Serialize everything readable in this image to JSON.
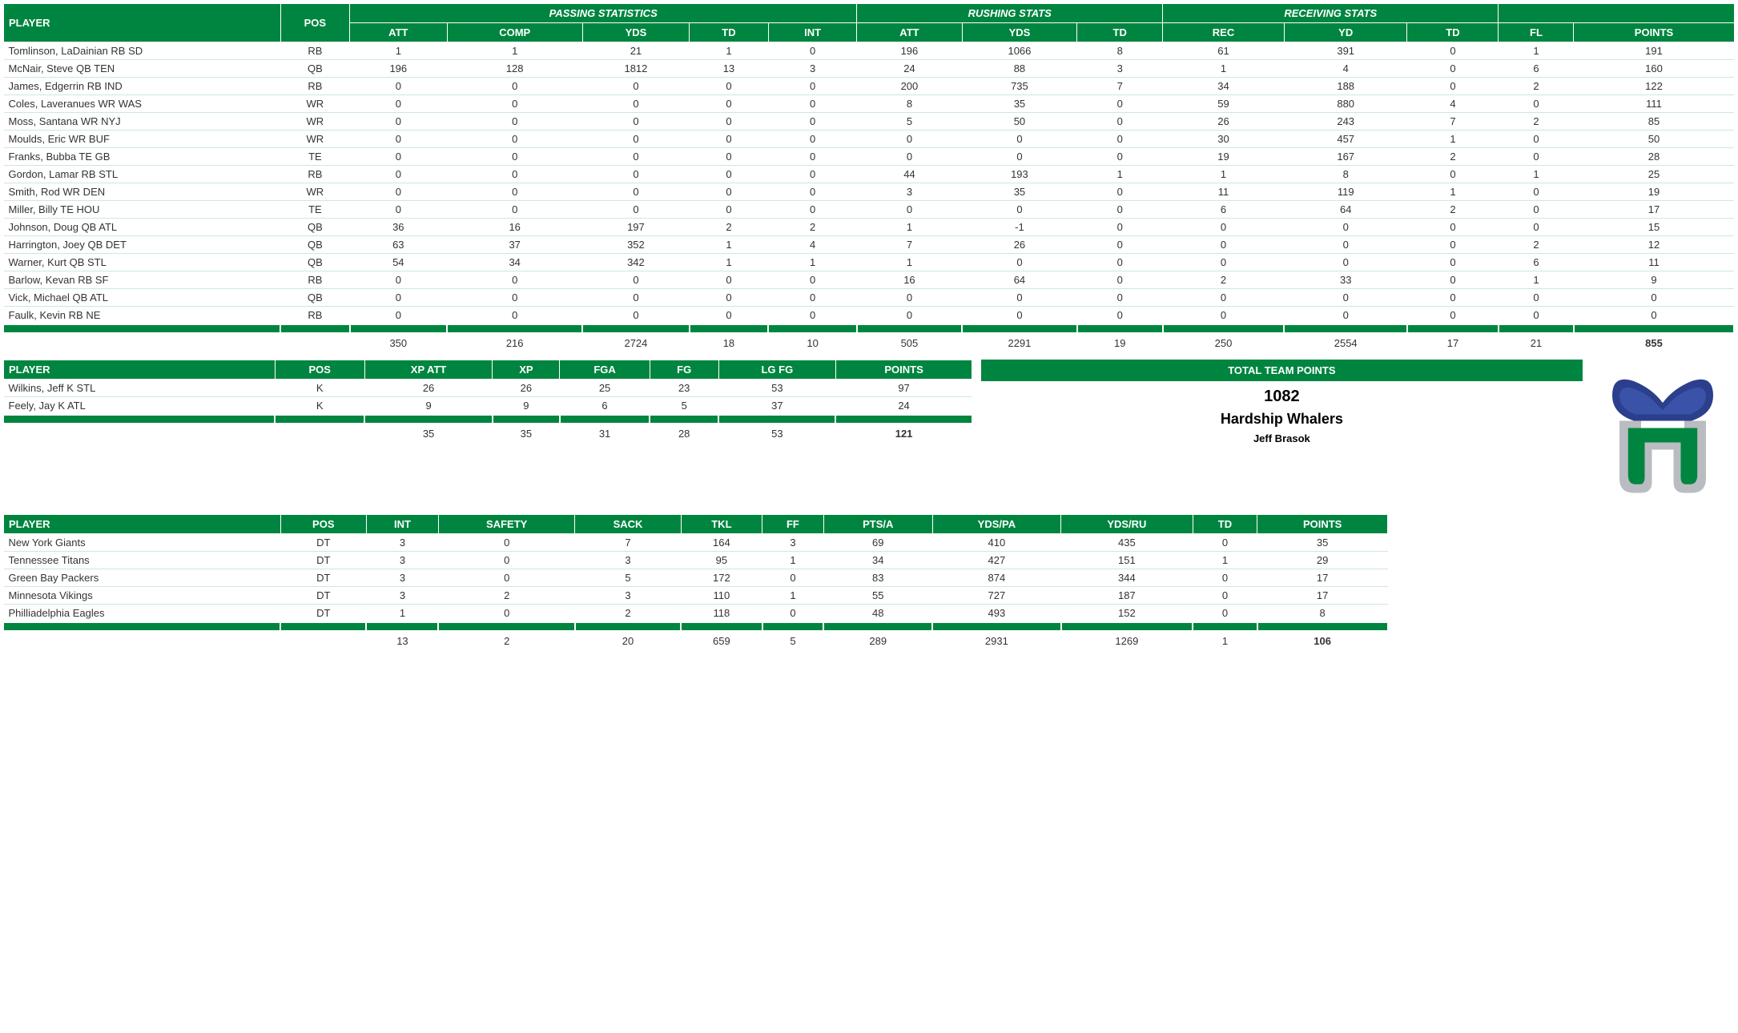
{
  "colors": {
    "header_bg": "#008540",
    "header_fg": "#ffffff",
    "row_border": "#cfe8d9",
    "text": "#333333",
    "logo_blue": "#2b3f8c",
    "logo_gray": "#b9bcc0",
    "logo_green": "#008540"
  },
  "offense": {
    "groups": [
      "PASSING STATISTICS",
      "RUSHING STATS",
      "RECEIVING STATS"
    ],
    "columns": [
      "PLAYER",
      "POS",
      "ATT",
      "COMP",
      "YDS",
      "TD",
      "INT",
      "ATT",
      "YDS",
      "TD",
      "REC",
      "YD",
      "TD",
      "FL",
      "POINTS"
    ],
    "rows": [
      [
        "Tomlinson, LaDainian RB SD",
        "RB",
        "1",
        "1",
        "21",
        "1",
        "0",
        "196",
        "1066",
        "8",
        "61",
        "391",
        "0",
        "1",
        "191"
      ],
      [
        "McNair, Steve QB TEN",
        "QB",
        "196",
        "128",
        "1812",
        "13",
        "3",
        "24",
        "88",
        "3",
        "1",
        "4",
        "0",
        "6",
        "160"
      ],
      [
        "James, Edgerrin RB IND",
        "RB",
        "0",
        "0",
        "0",
        "0",
        "0",
        "200",
        "735",
        "7",
        "34",
        "188",
        "0",
        "2",
        "122"
      ],
      [
        "Coles, Laveranues WR WAS",
        "WR",
        "0",
        "0",
        "0",
        "0",
        "0",
        "8",
        "35",
        "0",
        "59",
        "880",
        "4",
        "0",
        "111"
      ],
      [
        "Moss, Santana WR NYJ",
        "WR",
        "0",
        "0",
        "0",
        "0",
        "0",
        "5",
        "50",
        "0",
        "26",
        "243",
        "7",
        "2",
        "85"
      ],
      [
        "Moulds, Eric WR BUF",
        "WR",
        "0",
        "0",
        "0",
        "0",
        "0",
        "0",
        "0",
        "0",
        "30",
        "457",
        "1",
        "0",
        "50"
      ],
      [
        "Franks, Bubba TE GB",
        "TE",
        "0",
        "0",
        "0",
        "0",
        "0",
        "0",
        "0",
        "0",
        "19",
        "167",
        "2",
        "0",
        "28"
      ],
      [
        "Gordon, Lamar RB STL",
        "RB",
        "0",
        "0",
        "0",
        "0",
        "0",
        "44",
        "193",
        "1",
        "1",
        "8",
        "0",
        "1",
        "25"
      ],
      [
        "Smith, Rod WR DEN",
        "WR",
        "0",
        "0",
        "0",
        "0",
        "0",
        "3",
        "35",
        "0",
        "11",
        "119",
        "1",
        "0",
        "19"
      ],
      [
        "Miller, Billy TE HOU",
        "TE",
        "0",
        "0",
        "0",
        "0",
        "0",
        "0",
        "0",
        "0",
        "6",
        "64",
        "2",
        "0",
        "17"
      ],
      [
        "Johnson, Doug QB ATL",
        "QB",
        "36",
        "16",
        "197",
        "2",
        "2",
        "1",
        "-1",
        "0",
        "0",
        "0",
        "0",
        "0",
        "15"
      ],
      [
        "Harrington, Joey QB DET",
        "QB",
        "63",
        "37",
        "352",
        "1",
        "4",
        "7",
        "26",
        "0",
        "0",
        "0",
        "0",
        "2",
        "12"
      ],
      [
        "Warner, Kurt QB STL",
        "QB",
        "54",
        "34",
        "342",
        "1",
        "1",
        "1",
        "0",
        "0",
        "0",
        "0",
        "0",
        "6",
        "11"
      ],
      [
        "Barlow, Kevan RB SF",
        "RB",
        "0",
        "0",
        "0",
        "0",
        "0",
        "16",
        "64",
        "0",
        "2",
        "33",
        "0",
        "1",
        "9"
      ],
      [
        "Vick, Michael QB ATL",
        "QB",
        "0",
        "0",
        "0",
        "0",
        "0",
        "0",
        "0",
        "0",
        "0",
        "0",
        "0",
        "0",
        "0"
      ],
      [
        "Faulk, Kevin RB NE",
        "RB",
        "0",
        "0",
        "0",
        "0",
        "0",
        "0",
        "0",
        "0",
        "0",
        "0",
        "0",
        "0",
        "0"
      ]
    ],
    "totals": [
      "",
      "",
      "350",
      "216",
      "2724",
      "18",
      "10",
      "505",
      "2291",
      "19",
      "250",
      "2554",
      "17",
      "21",
      "855"
    ]
  },
  "kicking": {
    "columns": [
      "PLAYER",
      "POS",
      "XP ATT",
      "XP",
      "FGA",
      "FG",
      "LG FG",
      "POINTS"
    ],
    "rows": [
      [
        "Wilkins, Jeff K STL",
        "K",
        "26",
        "26",
        "25",
        "23",
        "53",
        "97"
      ],
      [
        "Feely, Jay K ATL",
        "K",
        "9",
        "9",
        "6",
        "5",
        "37",
        "24"
      ]
    ],
    "totals": [
      "",
      "",
      "35",
      "35",
      "31",
      "28",
      "53",
      "121"
    ]
  },
  "defense": {
    "columns": [
      "PLAYER",
      "POS",
      "INT",
      "SAFETY",
      "SACK",
      "TKL",
      "FF",
      "PTS/A",
      "YDS/PA",
      "YDS/RU",
      "TD",
      "POINTS"
    ],
    "rows": [
      [
        "New York Giants",
        "DT",
        "3",
        "0",
        "7",
        "164",
        "3",
        "69",
        "410",
        "435",
        "0",
        "35"
      ],
      [
        "Tennessee Titans",
        "DT",
        "3",
        "0",
        "3",
        "95",
        "1",
        "34",
        "427",
        "151",
        "1",
        "29"
      ],
      [
        "Green Bay Packers",
        "DT",
        "3",
        "0",
        "5",
        "172",
        "0",
        "83",
        "874",
        "344",
        "0",
        "17"
      ],
      [
        "Minnesota Vikings",
        "DT",
        "3",
        "2",
        "3",
        "110",
        "1",
        "55",
        "727",
        "187",
        "0",
        "17"
      ],
      [
        "Philliadelphia Eagles",
        "DT",
        "1",
        "0",
        "2",
        "118",
        "0",
        "48",
        "493",
        "152",
        "0",
        "8"
      ]
    ],
    "totals": [
      "",
      "",
      "13",
      "2",
      "20",
      "659",
      "5",
      "289",
      "2931",
      "1269",
      "1",
      "106"
    ]
  },
  "team": {
    "label": "TOTAL TEAM POINTS",
    "points": "1082",
    "name": "Hardship Whalers",
    "owner": "Jeff Brasok"
  }
}
